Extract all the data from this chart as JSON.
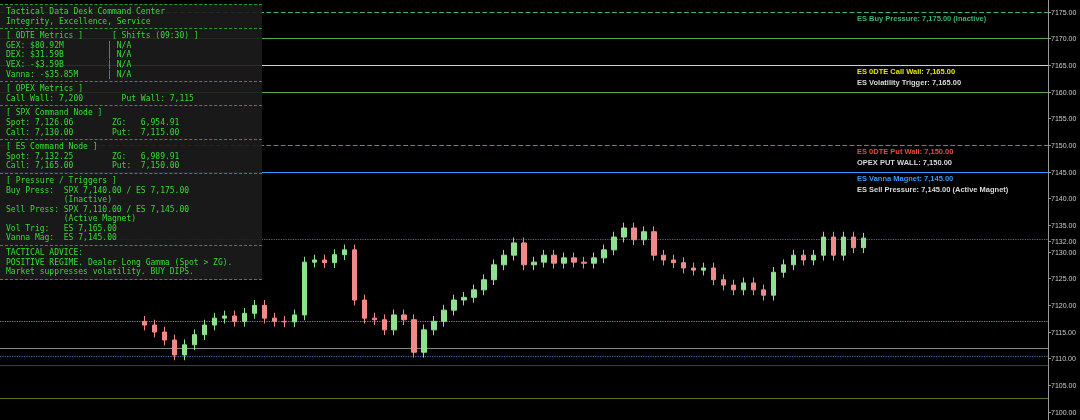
{
  "chart_data": {
    "type": "candlestick",
    "categories": [
      null,
      null,
      null,
      null,
      null,
      null,
      null,
      null,
      null,
      null,
      null,
      null,
      null,
      null,
      null,
      null,
      null,
      null,
      null,
      null,
      null,
      null,
      null,
      null,
      null,
      null,
      null,
      null,
      null,
      null,
      null,
      null,
      null,
      null,
      null,
      null,
      null,
      null,
      null,
      null,
      null,
      null,
      null,
      null,
      null,
      null,
      null,
      null,
      null,
      null,
      null,
      null,
      null,
      null,
      null,
      null,
      null,
      null,
      null,
      null,
      null,
      null,
      null,
      null,
      null,
      null,
      null,
      null,
      null,
      null,
      null,
      null,
      null,
      null,
      null,
      null,
      null,
      null,
      null,
      null,
      null,
      null,
      null,
      null,
      null,
      null,
      null,
      null,
      null,
      null,
      null,
      null,
      null,
      null,
      null,
      null,
      null,
      null,
      null,
      null,
      null,
      null,
      null,
      null,
      null
    ],
    "ohlc": [
      null,
      null,
      null,
      null,
      null,
      null,
      null,
      null,
      null,
      null,
      null,
      null,
      null,
      null,
      [
        7117.0,
        7118.0,
        7115.3,
        7116.3
      ],
      [
        7116.3,
        7117.3,
        7114.0,
        7115.0
      ],
      [
        7115.0,
        7116.0,
        7112.5,
        7113.5
      ],
      [
        7113.5,
        7114.5,
        7109.7,
        7110.7
      ],
      [
        7110.7,
        7113.6,
        7109.7,
        7112.6
      ],
      [
        7112.6,
        7115.5,
        7111.6,
        7114.5
      ],
      [
        7114.5,
        7117.3,
        7113.5,
        7116.3
      ],
      [
        7116.3,
        7118.6,
        7115.3,
        7117.6
      ],
      [
        7117.6,
        7119.0,
        7116.6,
        7118.0
      ],
      [
        7118.0,
        7119.0,
        7116.0,
        7117.0
      ],
      [
        7117.0,
        7119.5,
        7116.0,
        7118.5
      ],
      [
        7118.5,
        7121.0,
        7117.5,
        7120.0
      ],
      [
        7120.0,
        7121.0,
        7116.6,
        7117.6
      ],
      [
        7117.6,
        7118.6,
        7116.0,
        7117.0
      ],
      [
        7117.0,
        7118.0,
        7115.9,
        7116.9
      ],
      [
        7116.9,
        7119.2,
        7115.9,
        7118.2
      ],
      [
        7118.2,
        7129.1,
        7117.2,
        7128.1
      ],
      [
        7128.1,
        7129.5,
        7127.1,
        7128.5
      ],
      [
        7128.5,
        7129.5,
        7127.0,
        7128.0
      ],
      [
        7128.0,
        7130.5,
        7127.0,
        7129.5
      ],
      [
        7129.5,
        7131.4,
        7128.5,
        7130.4
      ],
      [
        7130.4,
        7131.4,
        7120.0,
        7121.0
      ],
      [
        7121.0,
        7122.0,
        7116.6,
        7117.6
      ],
      [
        7117.6,
        7118.6,
        7116.3,
        7117.3
      ],
      [
        7117.3,
        7118.3,
        7114.4,
        7115.4
      ],
      [
        7115.4,
        7119.2,
        7114.4,
        7118.2
      ],
      [
        7118.2,
        7119.2,
        7116.3,
        7117.3
      ],
      [
        7117.3,
        7118.3,
        7110.2,
        7111.2
      ],
      [
        7111.2,
        7116.4,
        7110.2,
        7115.4
      ],
      [
        7115.4,
        7118.0,
        7114.4,
        7117.0
      ],
      [
        7117.0,
        7120.1,
        7116.0,
        7119.1
      ],
      [
        7119.1,
        7122.0,
        7118.1,
        7121.0
      ],
      [
        7121.0,
        7122.5,
        7120.0,
        7121.5
      ],
      [
        7121.5,
        7123.9,
        7120.5,
        7122.9
      ],
      [
        7122.9,
        7125.8,
        7121.9,
        7124.8
      ],
      [
        7124.8,
        7128.6,
        7123.8,
        7127.6
      ],
      [
        7127.6,
        7130.4,
        7126.6,
        7129.4
      ],
      [
        7129.4,
        7132.7,
        7128.4,
        7131.7
      ],
      [
        7131.7,
        7132.7,
        7126.6,
        7127.6
      ],
      [
        7127.6,
        7129.1,
        7126.6,
        7128.1
      ],
      [
        7128.1,
        7130.4,
        7127.1,
        7129.4
      ],
      [
        7129.4,
        7130.4,
        7126.9,
        7127.9
      ],
      [
        7127.9,
        7129.9,
        7126.9,
        7128.9
      ],
      [
        7128.9,
        7129.9,
        7127.1,
        7128.1
      ],
      [
        7128.1,
        7129.1,
        7126.9,
        7127.9
      ],
      [
        7127.9,
        7129.9,
        7126.9,
        7128.9
      ],
      [
        7128.9,
        7131.4,
        7127.9,
        7130.4
      ],
      [
        7130.4,
        7133.8,
        7129.4,
        7132.8
      ],
      [
        7132.8,
        7135.5,
        7131.8,
        7134.5
      ],
      [
        7134.5,
        7135.5,
        7131.3,
        7132.3
      ],
      [
        7132.3,
        7134.8,
        7131.3,
        7133.8
      ],
      [
        7133.8,
        7134.8,
        7128.4,
        7129.4
      ],
      [
        7129.4,
        7130.4,
        7127.5,
        7128.5
      ],
      [
        7128.5,
        7129.5,
        7127.0,
        7128.0
      ],
      [
        7128.0,
        7129.0,
        7126.0,
        7127.0
      ],
      [
        7127.0,
        7128.0,
        7125.6,
        7126.6
      ],
      [
        7126.6,
        7128.0,
        7125.6,
        7127.0
      ],
      [
        7127.0,
        7128.0,
        7123.8,
        7124.8
      ],
      [
        7124.8,
        7125.8,
        7122.8,
        7123.8
      ],
      [
        7123.8,
        7124.8,
        7121.9,
        7122.9
      ],
      [
        7122.9,
        7125.2,
        7121.9,
        7124.2
      ],
      [
        7124.2,
        7125.2,
        7121.9,
        7122.9
      ],
      [
        7122.9,
        7123.9,
        7120.9,
        7121.9
      ],
      [
        7121.9,
        7127.2,
        7120.9,
        7126.2
      ],
      [
        7126.2,
        7128.6,
        7125.2,
        7127.6
      ],
      [
        7127.6,
        7130.4,
        7126.6,
        7129.4
      ],
      [
        7129.4,
        7130.4,
        7127.5,
        7128.5
      ],
      [
        7128.5,
        7130.4,
        7127.5,
        7129.4
      ],
      [
        7129.4,
        7133.8,
        7128.4,
        7132.8
      ],
      [
        7132.8,
        7133.8,
        7128.4,
        7129.4
      ],
      [
        7129.4,
        7133.8,
        7128.4,
        7132.8
      ],
      [
        7132.8,
        7133.8,
        7129.8,
        7130.8
      ],
      [
        7130.8,
        7133.6,
        7129.8,
        7132.6
      ],
      null,
      null,
      null,
      null,
      null,
      null,
      null,
      null,
      null,
      null,
      null,
      null,
      null,
      null,
      null,
      null,
      null,
      null
    ],
    "ylim": [
      7098.5,
      7177.25
    ],
    "yticks": [
      {
        "value": 7100,
        "label": "7100.00"
      },
      {
        "value": 7105,
        "label": "7105.00"
      },
      {
        "value": 7110,
        "label": "7110.00"
      },
      {
        "value": 7115,
        "label": "7115.00"
      },
      {
        "value": 7120,
        "label": "7120.00"
      },
      {
        "value": 7125,
        "label": "7125.00"
      },
      {
        "value": 7130,
        "label": "7130.00"
      },
      {
        "value": 7132,
        "label": "7132.00"
      },
      {
        "value": 7135,
        "label": "7135.00"
      },
      {
        "value": 7140,
        "label": "7140.00"
      },
      {
        "value": 7145,
        "label": "7145.00"
      },
      {
        "value": 7150,
        "label": "7150.00"
      },
      {
        "value": 7155,
        "label": "7155.00"
      },
      {
        "value": 7160,
        "label": "7160.00"
      },
      {
        "value": 7165,
        "label": "7165.00"
      },
      {
        "value": 7170,
        "label": "7170.00"
      },
      {
        "value": 7175,
        "label": "7175.00"
      }
    ],
    "tick_labels": "y",
    "ref_lines": [
      {
        "axis": "y",
        "value": 7175,
        "label": "ES Buy Pressure: 7,175.00 (Inactive)",
        "color": "#3cb371",
        "line_style": "dashed"
      },
      {
        "axis": "y",
        "value": 7170,
        "color": "#5aa845",
        "line_style": "solid"
      },
      {
        "axis": "y",
        "value": 7165,
        "label": "ES 0DTE Call Wall: 7,165.00",
        "color": "#e6e600",
        "line_style": "solid"
      },
      {
        "axis": "y",
        "value": 7160,
        "color": "#5aa845",
        "line_style": "solid"
      },
      {
        "axis": "y",
        "value": 7150,
        "label": "ES 0DTE Put Wall: 7,150.00",
        "color": "#e74c3c",
        "line_style": "dashed"
      },
      {
        "axis": "y",
        "value": 7145,
        "label": "ES Vanna Magnet: 7,145.00",
        "color": "#3399ff",
        "line_style": "solid"
      },
      {
        "axis": "y",
        "value": 7132.4,
        "color": "#4a6fa5",
        "line_style": "dotted"
      },
      {
        "axis": "y",
        "value": 7117,
        "color": "#b8860b",
        "line_style": "dotted"
      },
      {
        "axis": "y",
        "value": 7112,
        "color": "#888888",
        "line_style": "solid"
      },
      {
        "axis": "y",
        "value": 7110.5,
        "color": "#4a6fa5",
        "line_style": "dotted"
      },
      {
        "axis": "y",
        "value": 7108.8,
        "color": "#8b1a1a",
        "line_style": "solid"
      },
      {
        "axis": "y",
        "value": 7102.6,
        "color": "#6b6b1a",
        "line_style": "solid"
      }
    ],
    "annotations": [
      "Tactical Data Desk Command Center\nIntegrity, Excellence, Service",
      "[ 0DTE Metrics ]      [ Shifts (09:30) ]\nGEX: $80.92M         | N/A\nDEX: $31.59B         | N/A\nVEX: -$3.59B         | N/A\nVanna: -$35.85M      | N/A",
      "[ OPEX Metrics ]\nCall Wall: 7,200        Put Wall: 7,115",
      "[ SPX Command Node ]\nSpot: 7,126.06        ZG:   6,954.91\nCall: 7,130.00        Put:  7,115.00",
      "[ ES Command Node ]\nSpot: 7,132.25        ZG:   6,989.91\nCall: 7,165.00        Put:  7,150.00",
      "[ Pressure / Triggers ]\nBuy Press:  SPX 7,140.00 / ES 7,175.00\n            (Inactive)\nSell Press: SPX 7,110.00 / ES 7,145.00\n            (Active Magnet)\nVol Trig:   ES 7,165.00\nVanna Mag:  ES 7,145.00",
      "TACTICAL ADVICE:\nPOSITIVE REGIME. Dealer Long Gamma (Spot > ZG). Market suppresses volatility. BUY DIPS.",
      {
        "text": "ES Volatility Trigger: 7,165.00",
        "y": 7165
      },
      {
        "text": "OPEX PUT WALL: 7,150.00",
        "y": 7150
      },
      {
        "text": "ES Sell Pressure: 7,145.00 (Active Magnet)",
        "y": 7145
      }
    ]
  }
}
